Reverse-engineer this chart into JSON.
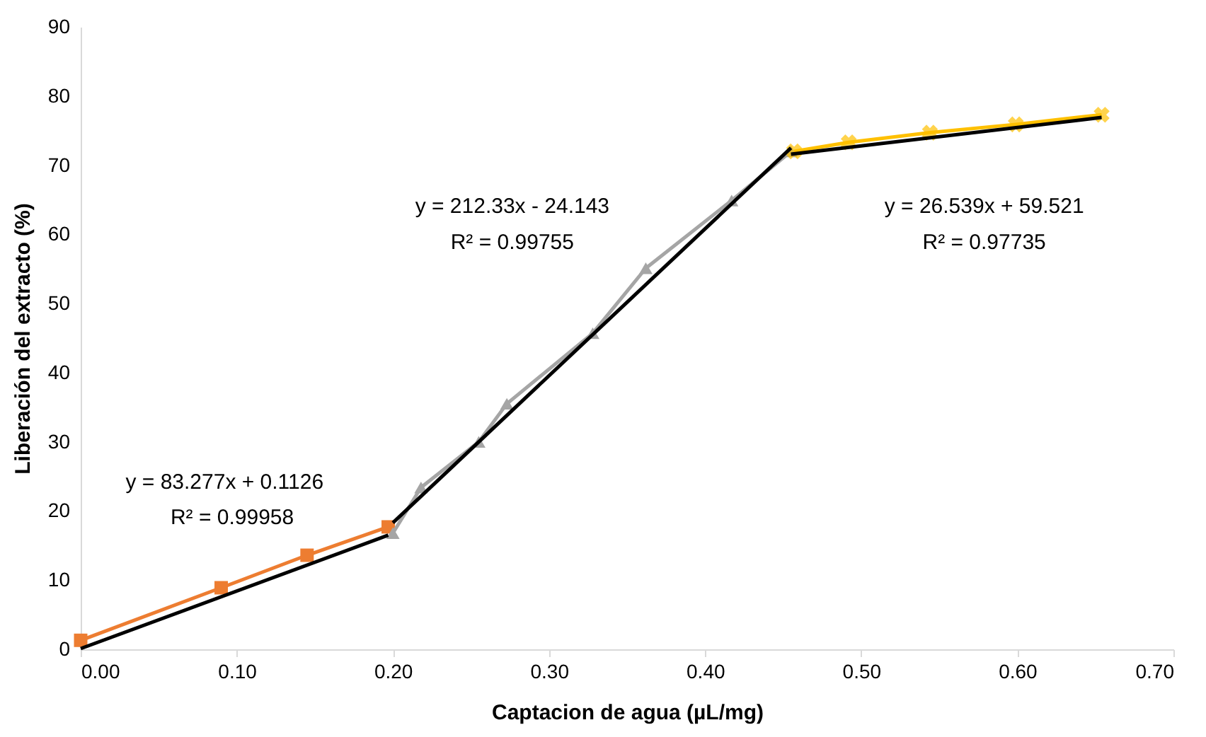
{
  "chart_data": {
    "type": "line",
    "xlabel": "Captacion de agua (µL/mg)",
    "ylabel": "Liberación  del extracto  (%)",
    "xlim": [
      0,
      0.7
    ],
    "ylim": [
      0,
      90
    ],
    "xticks": [
      {
        "value": 0,
        "label": "0.00"
      },
      {
        "value": 0.1,
        "label": "0.10"
      },
      {
        "value": 0.2,
        "label": "0.20"
      },
      {
        "value": 0.3,
        "label": "0.30"
      },
      {
        "value": 0.4,
        "label": "0.40"
      },
      {
        "value": 0.5,
        "label": "0.50"
      },
      {
        "value": 0.6,
        "label": "0.60"
      },
      {
        "value": 0.7,
        "label": "0.70"
      }
    ],
    "yticks": [
      0,
      10,
      20,
      30,
      40,
      50,
      60,
      70,
      80,
      90
    ],
    "grid": false,
    "line_style": "solid",
    "series": [
      {
        "marker": "square",
        "color": "#ed7d31",
        "x": [
          0.0,
          0.09,
          0.145,
          0.197
        ],
        "values": [
          1.3,
          8.9,
          13.6,
          17.7
        ]
      },
      {
        "marker": "triangle",
        "color": "#a5a5a5",
        "x": [
          0.2,
          0.218,
          0.255,
          0.273,
          0.328,
          0.362,
          0.417,
          0.455
        ],
        "values": [
          16.8,
          23.4,
          30.0,
          35.5,
          45.7,
          55.1,
          64.9,
          72.0
        ]
      },
      {
        "marker": "cross",
        "color": "#ffc000",
        "x": [
          0.457,
          0.492,
          0.544,
          0.599,
          0.654
        ],
        "values": [
          72.0,
          73.3,
          74.7,
          75.9,
          77.3
        ]
      },
      {
        "marker": "none",
        "color": "#000000",
        "x": [
          0.0,
          0.197
        ],
        "values": [
          0.1,
          16.5
        ]
      },
      {
        "marker": "none",
        "color": "#000000",
        "x": [
          0.2,
          0.455
        ],
        "values": [
          18.3,
          72.5
        ]
      },
      {
        "marker": "none",
        "color": "#000000",
        "x": [
          0.455,
          0.654
        ],
        "values": [
          71.6,
          76.9
        ]
      }
    ],
    "annotations": [
      "y = 83.277x  + 0.1126",
      "R² = 0.99958",
      "y = 212.33x  - 24.143",
      "R² = 0.99755",
      "y = 26.539x  + 59.521",
      "R² = 0.97735"
    ]
  }
}
